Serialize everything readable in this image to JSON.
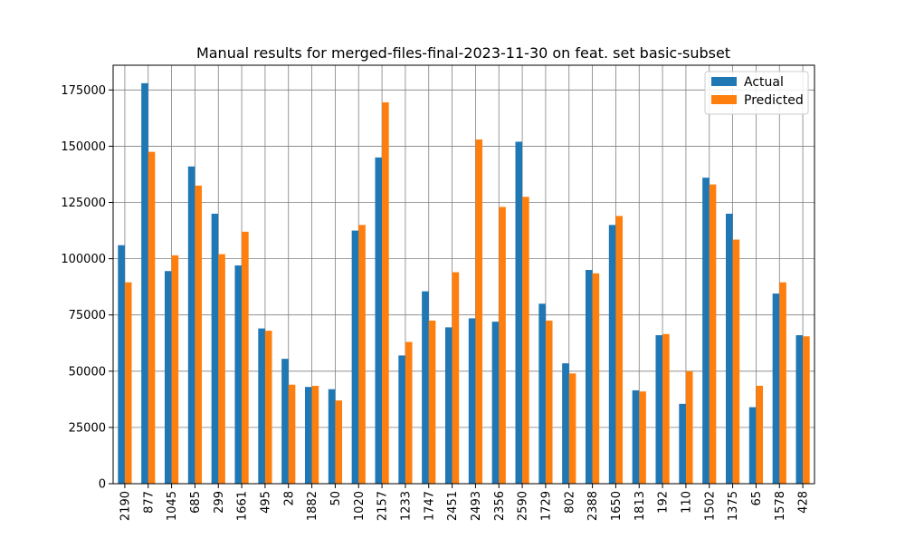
{
  "chart_data": {
    "type": "bar",
    "title": "Manual results for merged-files-final-2023-11-30 on feat. set basic-subset",
    "xlabel": "",
    "ylabel": "",
    "ylim": [
      0,
      186000
    ],
    "yticks": [
      0,
      25000,
      50000,
      75000,
      100000,
      125000,
      150000,
      175000
    ],
    "grid": true,
    "legend": "top-right",
    "categories": [
      "2190",
      "877",
      "1045",
      "685",
      "299",
      "1661",
      "495",
      "28",
      "1882",
      "50",
      "1020",
      "2157",
      "1233",
      "1747",
      "2451",
      "2493",
      "2356",
      "2590",
      "1729",
      "802",
      "2388",
      "1650",
      "1813",
      "192",
      "110",
      "1502",
      "1375",
      "65",
      "1578",
      "428"
    ],
    "series": [
      {
        "name": "Actual",
        "color": "#1f77b4",
        "values": [
          106000,
          178000,
          94500,
          141000,
          120000,
          97000,
          69000,
          55500,
          43000,
          42000,
          112500,
          145000,
          57000,
          85500,
          69500,
          73500,
          72000,
          152000,
          80000,
          53500,
          95000,
          115000,
          41500,
          66000,
          35500,
          136000,
          120000,
          34000,
          84500,
          66000
        ]
      },
      {
        "name": "Predicted",
        "color": "#ff7f0e",
        "values": [
          89500,
          147500,
          101500,
          132500,
          102000,
          112000,
          68000,
          44000,
          43500,
          37000,
          115000,
          169500,
          63000,
          72500,
          94000,
          153000,
          123000,
          127500,
          72500,
          49000,
          93500,
          119000,
          41000,
          66500,
          50000,
          133000,
          108500,
          43500,
          89500,
          65500
        ]
      }
    ]
  }
}
